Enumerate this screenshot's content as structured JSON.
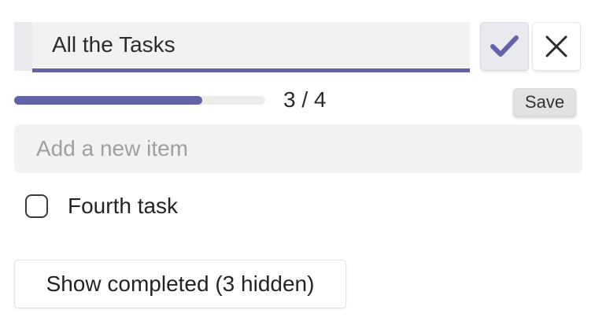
{
  "colors": {
    "accent": "#6264a7",
    "field_bg": "#f3f2f1",
    "handle_bg": "#e9eaee",
    "confirm_bg": "#e9e9f0",
    "track_bg": "#ececeb",
    "save_bg": "#e2e2e2",
    "text": "#242424",
    "placeholder": "#a19f9d"
  },
  "header": {
    "title_input": {
      "value": "All the Tasks"
    },
    "confirm_icon": "checkmark-icon",
    "close_icon": "close-icon"
  },
  "progress": {
    "completed": 3,
    "total": 4,
    "label": "3 / 4",
    "percent": 75
  },
  "save_button": {
    "label": "Save"
  },
  "add_item": {
    "placeholder": "Add a new item"
  },
  "tasks": [
    {
      "label": "Fourth task",
      "checked": false
    }
  ],
  "show_completed": {
    "label": "Show completed (3 hidden)",
    "hidden_count": 3
  }
}
